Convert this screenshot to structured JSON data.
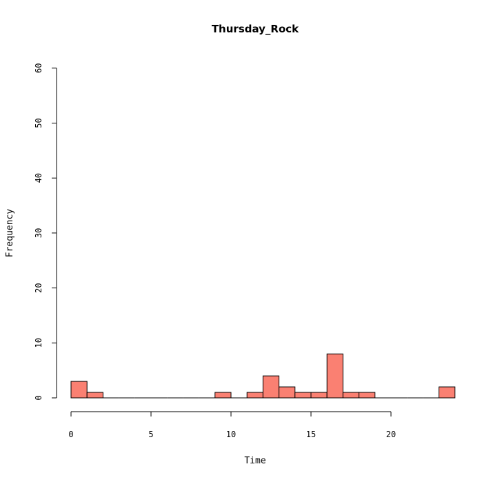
{
  "chart_data": {
    "type": "histogram",
    "title": "Thursday_Rock",
    "xlabel": "Time",
    "ylabel": "Frequency",
    "bin_width": 1,
    "bins": [
      {
        "start": 0,
        "end": 1,
        "count": 3
      },
      {
        "start": 1,
        "end": 2,
        "count": 1
      },
      {
        "start": 2,
        "end": 3,
        "count": 0
      },
      {
        "start": 3,
        "end": 4,
        "count": 0
      },
      {
        "start": 4,
        "end": 5,
        "count": 0
      },
      {
        "start": 5,
        "end": 6,
        "count": 0
      },
      {
        "start": 6,
        "end": 7,
        "count": 0
      },
      {
        "start": 7,
        "end": 8,
        "count": 0
      },
      {
        "start": 8,
        "end": 9,
        "count": 0
      },
      {
        "start": 9,
        "end": 10,
        "count": 1
      },
      {
        "start": 10,
        "end": 11,
        "count": 0
      },
      {
        "start": 11,
        "end": 12,
        "count": 1
      },
      {
        "start": 12,
        "end": 13,
        "count": 4
      },
      {
        "start": 13,
        "end": 14,
        "count": 2
      },
      {
        "start": 14,
        "end": 15,
        "count": 1
      },
      {
        "start": 15,
        "end": 16,
        "count": 1
      },
      {
        "start": 16,
        "end": 17,
        "count": 8
      },
      {
        "start": 17,
        "end": 18,
        "count": 1
      },
      {
        "start": 18,
        "end": 19,
        "count": 1
      },
      {
        "start": 19,
        "end": 20,
        "count": 0
      },
      {
        "start": 20,
        "end": 21,
        "count": 0
      },
      {
        "start": 21,
        "end": 22,
        "count": 0
      },
      {
        "start": 22,
        "end": 23,
        "count": 0
      },
      {
        "start": 23,
        "end": 24,
        "count": 2
      }
    ],
    "xlim": [
      0,
      24
    ],
    "ylim": [
      0,
      60
    ],
    "x_ticks": [
      0,
      5,
      10,
      15,
      20
    ],
    "x_tick_labels": [
      "0",
      "5",
      "10",
      "15",
      "20"
    ],
    "y_ticks": [
      0,
      10,
      20,
      30,
      40,
      50,
      60
    ],
    "y_tick_labels": [
      "0",
      "10",
      "20",
      "30",
      "40",
      "50",
      "60"
    ],
    "bar_color": "#FA8072",
    "grid": false,
    "legend": "none"
  }
}
